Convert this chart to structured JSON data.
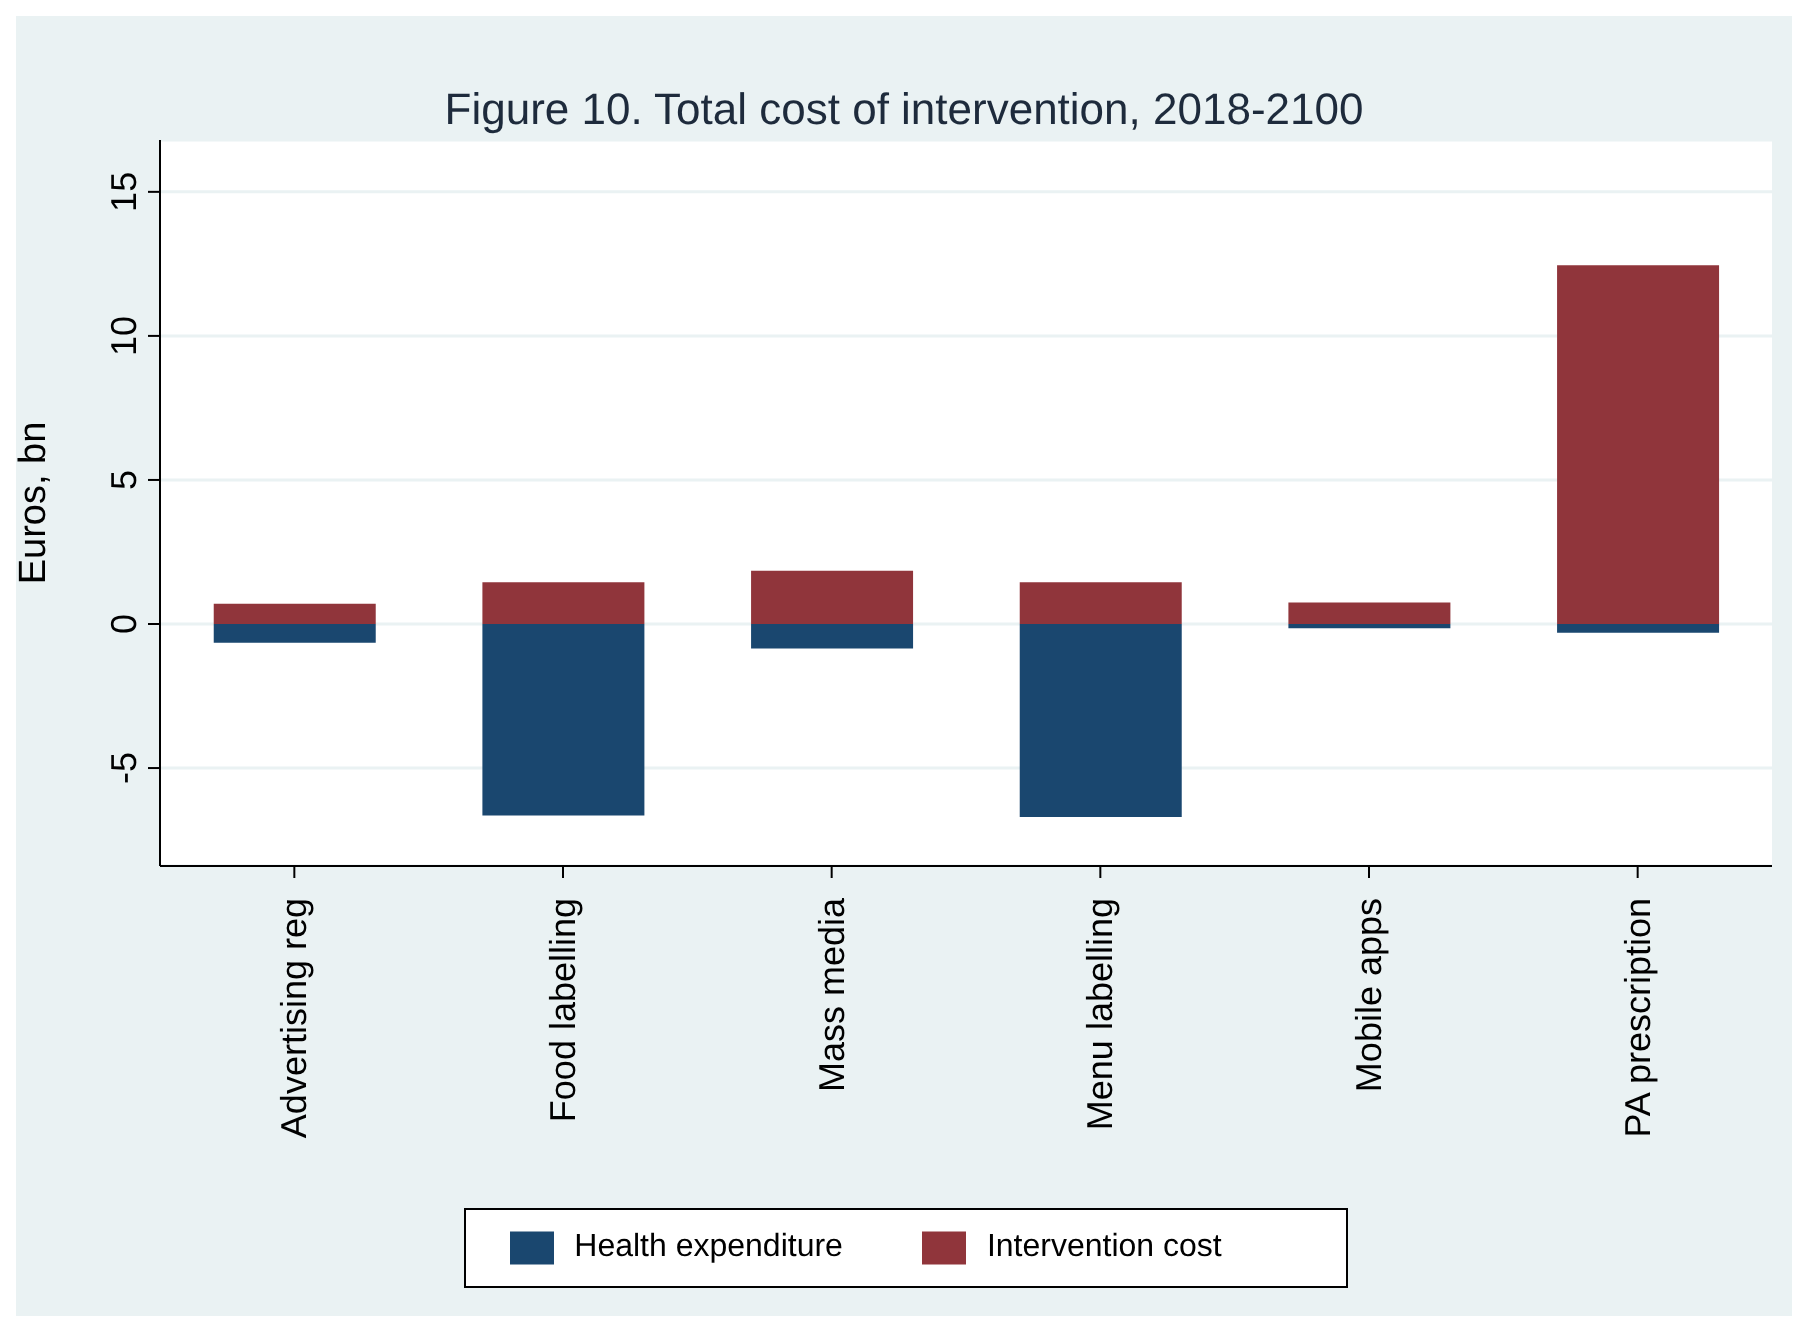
{
  "chart_data": {
    "type": "bar",
    "title": "Figure 10. Total cost of intervention, 2018-2100",
    "ylabel": "Euros, bn",
    "categories": [
      "Advertising reg",
      "Food labelling",
      "Mass media",
      "Menu labelling",
      "Mobile apps",
      "PA prescription"
    ],
    "series": [
      {
        "name": "Health expenditure",
        "color": "#1a476f",
        "values": [
          -0.65,
          -6.65,
          -0.85,
          -6.7,
          -0.15,
          -0.3
        ]
      },
      {
        "name": "Intervention cost",
        "color": "#90353b",
        "values": [
          0.7,
          1.45,
          1.85,
          1.45,
          0.75,
          12.45
        ]
      }
    ],
    "stacked": true,
    "ylim": [
      -8.4,
      16.8
    ],
    "yticks": [
      -5,
      0,
      5,
      10,
      15
    ],
    "grid": "y",
    "legend": "bottom"
  }
}
